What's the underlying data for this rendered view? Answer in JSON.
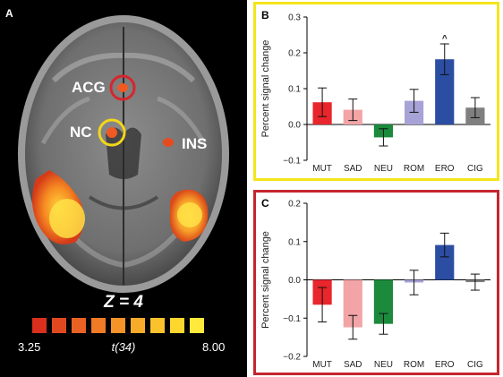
{
  "panelA": {
    "label": "A",
    "regions": [
      "ACG",
      "NC",
      "INS"
    ],
    "z_label": "Z = 4",
    "scale_min": "3.25",
    "scale_mid": "t(34)",
    "scale_max": "8.00",
    "scale_colors": [
      "#d8301c",
      "#e24820",
      "#ea6124",
      "#f07a26",
      "#f59228",
      "#f8ab2a",
      "#fbc22c",
      "#fdd62e",
      "#ffe93a"
    ]
  },
  "chart_data": [
    {
      "type": "bar",
      "panel_label": "B",
      "border_color": "#f4e51c",
      "categories": [
        "MUT",
        "SAD",
        "NEU",
        "ROM",
        "ERO",
        "CIG"
      ],
      "values": [
        0.062,
        0.041,
        -0.036,
        0.066,
        0.182,
        0.047
      ],
      "errors": [
        0.04,
        0.03,
        0.024,
        0.032,
        0.043,
        0.028
      ],
      "colors": [
        "#e8262b",
        "#f2a4a6",
        "#1b8a3c",
        "#a7a3d6",
        "#2b4ea2",
        "#7f7f7f"
      ],
      "ylabel": "Percent signal change",
      "ylim": [
        -0.1,
        0.3
      ],
      "yticks": [
        "−0.1",
        "0.0",
        "0.1",
        "0.2",
        "0.3"
      ],
      "annotation": {
        "category": "ERO",
        "text": "^"
      }
    },
    {
      "type": "bar",
      "panel_label": "C",
      "border_color": "#c4262e",
      "categories": [
        "MUT",
        "SAD",
        "NEU",
        "ROM",
        "ERO",
        "CIG"
      ],
      "values": [
        -0.065,
        -0.124,
        -0.115,
        -0.007,
        0.091,
        -0.006
      ],
      "errors": [
        0.045,
        0.031,
        0.027,
        0.032,
        0.031,
        0.021
      ],
      "colors": [
        "#e8262b",
        "#f2a4a6",
        "#1b8a3c",
        "#a7a3d6",
        "#2b4ea2",
        "#7f7f7f"
      ],
      "ylabel": "Percent signal change",
      "ylim": [
        -0.2,
        0.2
      ],
      "yticks": [
        "−0.2",
        "−0.1",
        "0.0",
        "0.1",
        "0.2"
      ]
    }
  ]
}
